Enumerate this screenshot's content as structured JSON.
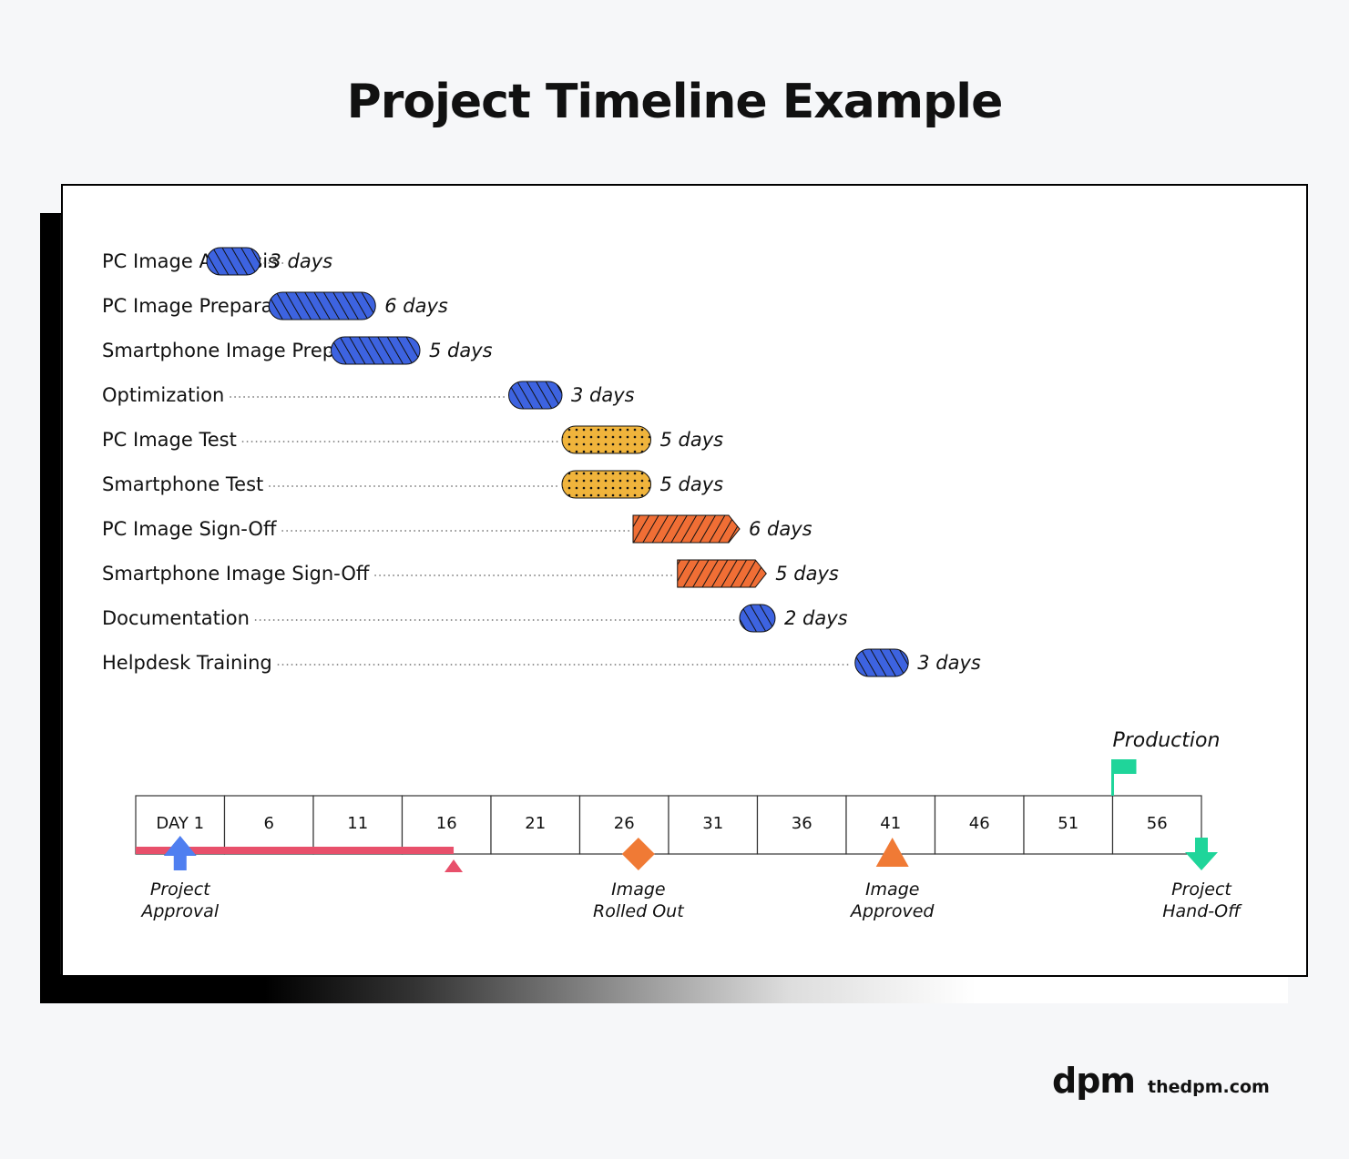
{
  "title": "Project Timeline Example",
  "logo": {
    "mark": "dpm",
    "url": "thedpm.com"
  },
  "colors": {
    "analysis": "#3d63e0",
    "test": "#f0b43c",
    "signoff": "#f06e35",
    "red_bar": "#e8506b",
    "flag": "#1fd59a",
    "arrow_up": "#4f7ff0",
    "diamond": "#f07a35",
    "triangle": "#f07a35",
    "handoff": "#1fd59a"
  },
  "chart_data": {
    "type": "gantt",
    "tasks": [
      {
        "name": "PC Image Analysis",
        "start": 5,
        "duration": 3,
        "label": "3 days",
        "style": "analysis"
      },
      {
        "name": "PC Image Preparation",
        "start": 8.5,
        "duration": 6,
        "label": "6 days",
        "style": "analysis"
      },
      {
        "name": "Smartphone Image Preparation",
        "start": 12,
        "duration": 5,
        "label": "5 days",
        "style": "analysis"
      },
      {
        "name": "Optimization",
        "start": 22,
        "duration": 3,
        "label": "3 days",
        "style": "analysis"
      },
      {
        "name": "PC Image Test",
        "start": 25,
        "duration": 5,
        "label": "5 days",
        "style": "test"
      },
      {
        "name": "Smartphone Test",
        "start": 25,
        "duration": 5,
        "label": "5 days",
        "style": "test"
      },
      {
        "name": "PC Image Sign-Off",
        "start": 29,
        "duration": 6,
        "label": "6 days",
        "style": "signoff"
      },
      {
        "name": "Smartphone Image Sign-Off",
        "start": 31.5,
        "duration": 5,
        "label": "5 days",
        "style": "signoff"
      },
      {
        "name": "Documentation",
        "start": 35,
        "duration": 2,
        "label": "2 days",
        "style": "analysis"
      },
      {
        "name": "Helpdesk Training",
        "start": 41.5,
        "duration": 3,
        "label": "3 days",
        "style": "analysis"
      }
    ],
    "axis": {
      "ticks": [
        "DAY 1",
        "6",
        "11",
        "16",
        "21",
        "26",
        "31",
        "36",
        "41",
        "46",
        "51",
        "56"
      ],
      "tick_values": [
        1,
        6,
        11,
        16,
        21,
        26,
        31,
        36,
        41,
        46,
        51,
        56
      ],
      "range": [
        1,
        61
      ]
    },
    "progress": {
      "start": 1,
      "end": 18.9
    },
    "production": {
      "label": "Production",
      "day": 56
    },
    "milestones": [
      {
        "label_line1": "Project",
        "label_line2": "Approval",
        "day": 3.5,
        "shape": "arrow-up"
      },
      {
        "label_line1": "Image",
        "label_line2": "Rolled Out",
        "day": 29.3,
        "shape": "diamond"
      },
      {
        "label_line1": "Image",
        "label_line2": "Approved",
        "day": 43.6,
        "shape": "triangle"
      },
      {
        "label_line1": "Project",
        "label_line2": "Hand-Off",
        "day": 61,
        "shape": "arrow-down"
      }
    ]
  }
}
